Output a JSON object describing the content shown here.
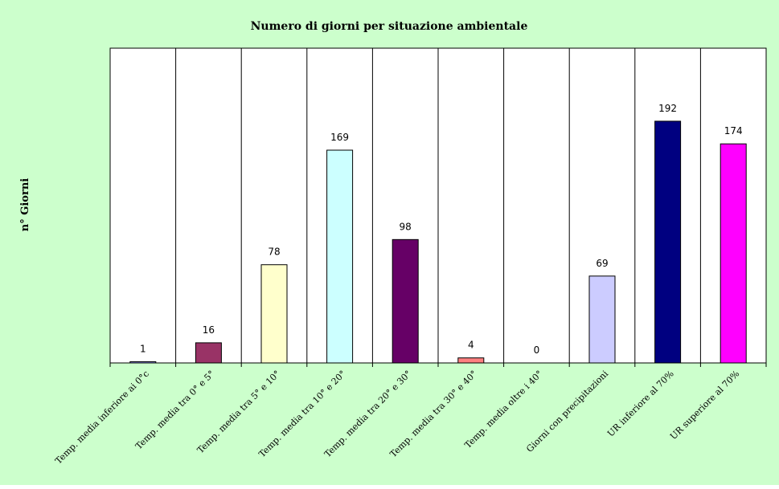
{
  "chart_data": {
    "type": "bar",
    "title": "Numero di giorni per situazione ambientale",
    "xlabel": "",
    "ylabel": "n° Giorni",
    "categories": [
      "Temp. media inferiore ai 0°c",
      "Temp. media tra 0° e 5°",
      "Temp. media tra 5° e 10°",
      "Temp. media tra 10° e 20°",
      "Temp. media tra 20° e 30°",
      "Temp. media tra 30° e 40°",
      "Temp. media oltre i 40°",
      "Giorni con precipitazioni",
      "UR  inferiore al 70%",
      "UR superiore al 70%"
    ],
    "values": [
      1,
      16,
      78,
      169,
      98,
      4,
      0,
      69,
      192,
      174
    ],
    "colors": [
      "#9999ff",
      "#993366",
      "#ffffcc",
      "#ccffff",
      "#660066",
      "#ff8080",
      "#0066cc",
      "#ccccff",
      "#000080",
      "#ff00ff"
    ],
    "ylim": [
      0,
      250
    ],
    "grid": "vertical category separators",
    "legend": "none",
    "plot_background": "#ffffff",
    "chart_background": "#ccffcc"
  }
}
